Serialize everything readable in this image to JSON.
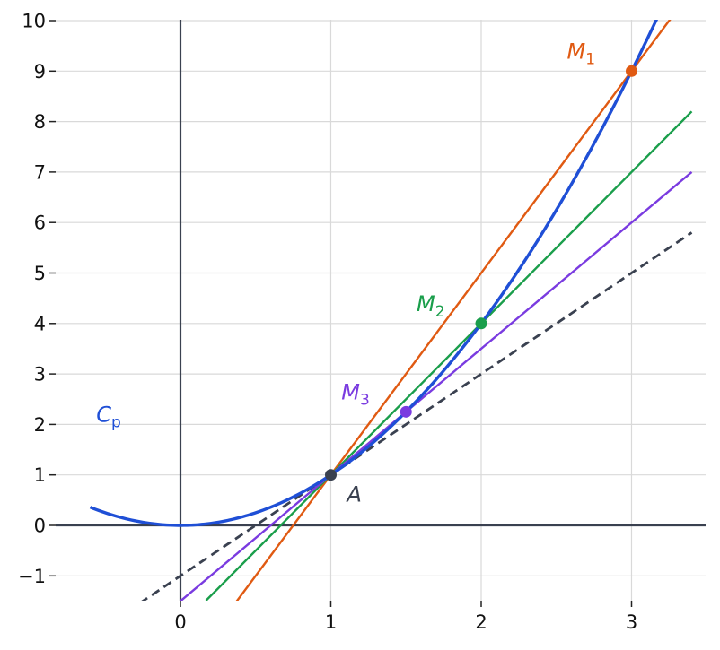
{
  "chart_data": {
    "type": "line",
    "title": "",
    "xlabel": "",
    "ylabel": "",
    "xlim": [
      -0.83,
      3.5
    ],
    "ylim": [
      -1.5,
      10
    ],
    "x_ticks": [
      0,
      1,
      2,
      3
    ],
    "y_ticks": [
      -1,
      0,
      1,
      2,
      3,
      4,
      5,
      6,
      7,
      8,
      9,
      10
    ],
    "x_tick_labels": [
      "0",
      "1",
      "2",
      "3"
    ],
    "y_tick_labels": [
      "−1",
      "0",
      "1",
      "2",
      "3",
      "4",
      "5",
      "6",
      "7",
      "8",
      "9",
      "10"
    ],
    "grid": true,
    "axes_through_origin": true,
    "colors": {
      "curve": "#1f4fd6",
      "secant_m1": "#e05a12",
      "secant_m2": "#1a9e4b",
      "secant_m3": "#7a3be0",
      "tangent": "#3a4150",
      "axis": "#3a4150",
      "grid": "#d9d9d9"
    },
    "curve": {
      "label": "C",
      "label_sub": "p",
      "function": "x^2",
      "x_range": [
        -0.6,
        3.3
      ]
    },
    "lines": [
      {
        "id": "secant-m1",
        "slope": 4,
        "intercept": -3,
        "x_range": [
          0.37,
          3.4
        ],
        "style": "solid"
      },
      {
        "id": "secant-m2",
        "slope": 3,
        "intercept": -2,
        "x_range": [
          0.17,
          3.4
        ],
        "style": "solid"
      },
      {
        "id": "secant-m3",
        "slope": 2.5,
        "intercept": -1.5,
        "x_range": [
          0,
          3.4
        ],
        "style": "solid"
      },
      {
        "id": "tangent-a",
        "slope": 2,
        "intercept": -1,
        "x_range": [
          -0.27,
          3.4
        ],
        "style": "dashed"
      }
    ],
    "points": [
      {
        "id": "A",
        "label": "A",
        "sub": "",
        "x": 1,
        "y": 1,
        "color": "#3a4150"
      },
      {
        "id": "M1",
        "label": "M",
        "sub": "1",
        "x": 3,
        "y": 9,
        "color": "#e05a12"
      },
      {
        "id": "M2",
        "label": "M",
        "sub": "2",
        "x": 2,
        "y": 4,
        "color": "#1a9e4b"
      },
      {
        "id": "M3",
        "label": "M",
        "sub": "3",
        "x": 1.5,
        "y": 2.25,
        "color": "#7a3be0"
      }
    ]
  }
}
